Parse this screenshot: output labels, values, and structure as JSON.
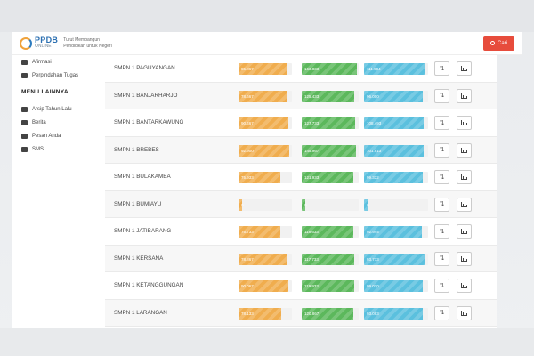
{
  "header": {
    "logo_main": "PPDB",
    "logo_sub": "ONLINE",
    "tagline_line1": "Turut Membangun",
    "tagline_line2": "Pendidikan untuk Negeri",
    "search_label": "Cari"
  },
  "sidebar": {
    "items_top": [
      {
        "label": "Afirmasi",
        "icon": "users-icon"
      },
      {
        "label": "Perpindahan Tugas",
        "icon": "users-icon"
      }
    ],
    "section_heading": "MENU LAINNYA",
    "items_other": [
      {
        "label": "Arsip Tahun Lalu",
        "icon": "archive-icon"
      },
      {
        "label": "Berita",
        "icon": "megaphone-icon"
      },
      {
        "label": "Pesan Anda",
        "icon": "comment-icon"
      },
      {
        "label": "SMS",
        "icon": "envelope-icon"
      }
    ]
  },
  "rows": [
    {
      "school": "SMPN 1 PAGUYANGAN",
      "v1": "85.867",
      "v2": "163.833",
      "v3": "111.904",
      "f1": 0.9,
      "f2": 0.97,
      "f3": 0.96
    },
    {
      "school": "SMPN 1 BANJARHARJO",
      "v1": "78.667",
      "v2": "125.433",
      "v3": "96.000",
      "f1": 0.92,
      "f2": 0.92,
      "f3": 0.92
    },
    {
      "school": "SMPN 1 BANTARKAWUNG",
      "v1": "90.467",
      "v2": "127.733",
      "v3": "108.493",
      "f1": 0.93,
      "f2": 0.94,
      "f3": 0.93
    },
    {
      "school": "SMPN 1 BREBES",
      "v1": "92.900",
      "v2": "145.967",
      "v3": "101.913",
      "f1": 0.95,
      "f2": 0.96,
      "f3": 0.93
    },
    {
      "school": "SMPN 1 BULAKAMBA",
      "v1": "75.933",
      "v2": "121.933",
      "v3": "99.332",
      "f1": 0.78,
      "f2": 0.9,
      "f3": 0.92
    },
    {
      "school": "SMPN 1 BUMIAYU",
      "v1": "0",
      "v2": "0",
      "v3": "0",
      "f1": 0.06,
      "f2": 0.06,
      "f3": 0.06
    },
    {
      "school": "SMPN 1 JATIBARANG",
      "v1": "75.733",
      "v2": "118.633",
      "v3": "92.944",
      "f1": 0.78,
      "f2": 0.9,
      "f3": 0.9
    },
    {
      "school": "SMPN 1 KERSANA",
      "v1": "78.867",
      "v2": "117.733",
      "v3": "93.773",
      "f1": 0.92,
      "f2": 0.92,
      "f3": 0.94
    },
    {
      "school": "SMPN 1 KETANGGUNGAN",
      "v1": "90.067",
      "v2": "119.933",
      "v3": "99.070",
      "f1": 0.93,
      "f2": 0.92,
      "f3": 0.92
    },
    {
      "school": "SMPN 1 LARANGAN",
      "v1": "78.133",
      "v2": "120.867",
      "v3": "93.093",
      "f1": 0.8,
      "f2": 0.91,
      "f3": 0.92
    }
  ],
  "colors": {
    "bar1": "#f0ad4e",
    "bar2": "#5cb85c",
    "bar3": "#5bc0de",
    "search": "#e74c3c"
  }
}
